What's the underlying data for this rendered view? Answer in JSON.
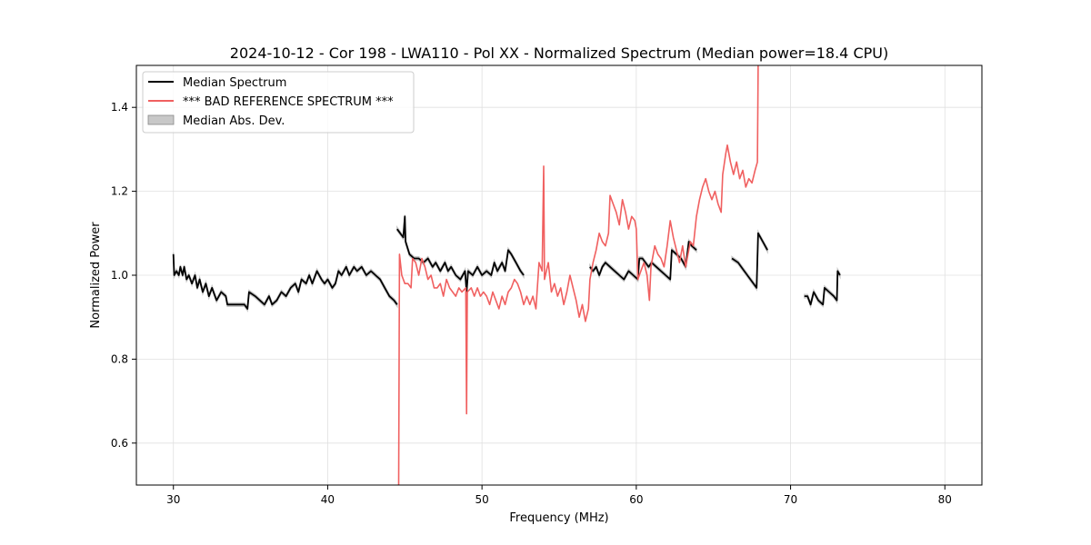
{
  "chart_data": {
    "type": "line",
    "title": "2024-10-12 - Cor 198 - LWA110 - Pol XX - Normalized Spectrum (Median power=18.4 CPU)",
    "xlabel": "Frequency (MHz)",
    "ylabel": "Normalized Power",
    "xlim": [
      27.6,
      82.4
    ],
    "ylim": [
      0.5,
      1.5
    ],
    "xticks": [
      30,
      40,
      50,
      60,
      70,
      80
    ],
    "yticks": [
      0.6,
      0.8,
      1.0,
      1.2,
      1.4
    ],
    "xtick_labels": [
      "30",
      "40",
      "50",
      "60",
      "70",
      "80"
    ],
    "ytick_labels": [
      "0.6",
      "0.8",
      "1.0",
      "1.2",
      "1.4"
    ],
    "grid": true,
    "legend_position": "top-left",
    "legend": [
      {
        "label": "Median Spectrum",
        "kind": "line",
        "color": "#000000"
      },
      {
        "label": "*** BAD REFERENCE SPECTRUM ***",
        "kind": "line",
        "color": "#f06060"
      },
      {
        "label": "Median Abs. Dev.",
        "kind": "patch",
        "color": "#c8c8c8"
      }
    ],
    "series": [
      {
        "name": "Median Spectrum",
        "color": "#000000",
        "segments": [
          [
            [
              30.0,
              1.05
            ],
            [
              30.05,
              1.0
            ],
            [
              30.2,
              1.01
            ],
            [
              30.35,
              1.0
            ],
            [
              30.45,
              1.02
            ],
            [
              30.6,
              1.0
            ],
            [
              30.7,
              1.02
            ],
            [
              30.85,
              0.99
            ],
            [
              31.0,
              1.0
            ],
            [
              31.2,
              0.98
            ],
            [
              31.4,
              1.0
            ],
            [
              31.55,
              0.97
            ],
            [
              31.7,
              0.99
            ],
            [
              31.9,
              0.96
            ],
            [
              32.1,
              0.98
            ],
            [
              32.3,
              0.95
            ],
            [
              32.5,
              0.97
            ],
            [
              32.8,
              0.94
            ],
            [
              33.1,
              0.96
            ],
            [
              33.4,
              0.95
            ],
            [
              33.5,
              0.93
            ],
            [
              33.8,
              0.93
            ],
            [
              34.2,
              0.93
            ],
            [
              34.6,
              0.93
            ],
            [
              34.8,
              0.92
            ],
            [
              34.9,
              0.96
            ],
            [
              35.3,
              0.95
            ],
            [
              35.6,
              0.94
            ],
            [
              35.9,
              0.93
            ],
            [
              36.2,
              0.95
            ],
            [
              36.4,
              0.93
            ],
            [
              36.7,
              0.94
            ],
            [
              37.0,
              0.96
            ],
            [
              37.3,
              0.95
            ],
            [
              37.6,
              0.97
            ],
            [
              37.9,
              0.98
            ],
            [
              38.1,
              0.96
            ],
            [
              38.3,
              0.99
            ],
            [
              38.6,
              0.98
            ],
            [
              38.8,
              1.0
            ],
            [
              39.0,
              0.98
            ],
            [
              39.3,
              1.01
            ],
            [
              39.6,
              0.99
            ],
            [
              39.8,
              0.98
            ],
            [
              40.0,
              0.99
            ],
            [
              40.3,
              0.97
            ],
            [
              40.5,
              0.98
            ],
            [
              40.7,
              1.01
            ],
            [
              40.9,
              1.0
            ],
            [
              41.2,
              1.02
            ],
            [
              41.4,
              1.0
            ],
            [
              41.7,
              1.02
            ],
            [
              41.9,
              1.01
            ],
            [
              42.2,
              1.02
            ],
            [
              42.5,
              1.0
            ],
            [
              42.8,
              1.01
            ],
            [
              43.1,
              1.0
            ],
            [
              43.4,
              0.99
            ],
            [
              43.7,
              0.97
            ],
            [
              44.0,
              0.95
            ],
            [
              44.3,
              0.94
            ],
            [
              44.5,
              0.93
            ]
          ],
          [
            [
              44.5,
              1.11
            ],
            [
              44.7,
              1.1
            ],
            [
              44.9,
              1.09
            ],
            [
              45.0,
              1.14
            ],
            [
              45.05,
              1.08
            ],
            [
              45.3,
              1.05
            ],
            [
              45.6,
              1.04
            ],
            [
              45.9,
              1.04
            ],
            [
              46.2,
              1.03
            ],
            [
              46.5,
              1.04
            ],
            [
              46.8,
              1.02
            ],
            [
              47.0,
              1.03
            ],
            [
              47.3,
              1.01
            ],
            [
              47.6,
              1.03
            ],
            [
              47.8,
              1.01
            ],
            [
              48.0,
              1.02
            ],
            [
              48.3,
              1.0
            ],
            [
              48.6,
              0.99
            ],
            [
              48.9,
              1.01
            ],
            [
              49.0,
              0.96
            ],
            [
              49.1,
              1.01
            ],
            [
              49.4,
              1.0
            ],
            [
              49.7,
              1.02
            ],
            [
              50.0,
              1.0
            ],
            [
              50.3,
              1.01
            ],
            [
              50.6,
              1.0
            ],
            [
              50.8,
              1.03
            ],
            [
              51.0,
              1.01
            ],
            [
              51.3,
              1.03
            ],
            [
              51.5,
              1.01
            ],
            [
              51.7,
              1.06
            ],
            [
              51.9,
              1.05
            ],
            [
              52.2,
              1.03
            ],
            [
              52.5,
              1.01
            ],
            [
              52.7,
              1.0
            ]
          ],
          [
            [
              57.0,
              1.02
            ],
            [
              57.2,
              1.01
            ],
            [
              57.4,
              1.02
            ],
            [
              57.6,
              1.0
            ],
            [
              57.8,
              1.02
            ],
            [
              58.0,
              1.03
            ],
            [
              58.3,
              1.02
            ],
            [
              58.6,
              1.01
            ],
            [
              58.9,
              1.0
            ],
            [
              59.2,
              0.99
            ],
            [
              59.5,
              1.01
            ],
            [
              59.8,
              1.0
            ],
            [
              60.1,
              0.99
            ],
            [
              60.2,
              1.04
            ],
            [
              60.4,
              1.04
            ],
            [
              60.6,
              1.03
            ],
            [
              60.8,
              1.02
            ],
            [
              61.0,
              1.03
            ],
            [
              61.3,
              1.02
            ],
            [
              61.6,
              1.01
            ],
            [
              61.9,
              1.0
            ],
            [
              62.2,
              0.99
            ],
            [
              62.3,
              1.06
            ],
            [
              62.6,
              1.05
            ],
            [
              62.9,
              1.04
            ],
            [
              63.2,
              1.02
            ],
            [
              63.4,
              1.08
            ],
            [
              63.6,
              1.07
            ],
            [
              63.9,
              1.06
            ]
          ],
          [
            [
              66.2,
              1.04
            ],
            [
              66.6,
              1.03
            ],
            [
              67.0,
              1.01
            ],
            [
              67.4,
              0.99
            ],
            [
              67.8,
              0.97
            ],
            [
              67.9,
              1.1
            ],
            [
              68.2,
              1.08
            ],
            [
              68.5,
              1.06
            ]
          ],
          [
            [
              70.9,
              0.95
            ],
            [
              71.1,
              0.95
            ],
            [
              71.3,
              0.93
            ],
            [
              71.5,
              0.96
            ],
            [
              71.8,
              0.94
            ],
            [
              72.1,
              0.93
            ],
            [
              72.2,
              0.97
            ],
            [
              72.5,
              0.96
            ],
            [
              72.8,
              0.95
            ],
            [
              73.0,
              0.94
            ],
            [
              73.05,
              1.01
            ],
            [
              73.2,
              1.0
            ]
          ]
        ]
      },
      {
        "name": "*** BAD REFERENCE SPECTRUM ***",
        "color": "#f06060",
        "segments": [
          [
            [
              44.6,
              0.5
            ],
            [
              44.65,
              1.05
            ],
            [
              44.8,
              1.0
            ],
            [
              45.0,
              0.98
            ],
            [
              45.2,
              0.98
            ],
            [
              45.4,
              0.97
            ],
            [
              45.5,
              1.04
            ],
            [
              45.7,
              1.03
            ],
            [
              45.9,
              1.0
            ],
            [
              46.1,
              1.04
            ],
            [
              46.3,
              1.02
            ],
            [
              46.5,
              0.99
            ],
            [
              46.7,
              1.0
            ],
            [
              46.9,
              0.97
            ],
            [
              47.1,
              0.97
            ],
            [
              47.3,
              0.98
            ],
            [
              47.5,
              0.95
            ],
            [
              47.7,
              0.99
            ],
            [
              47.9,
              0.97
            ],
            [
              48.1,
              0.96
            ],
            [
              48.3,
              0.95
            ],
            [
              48.5,
              0.97
            ],
            [
              48.7,
              0.96
            ],
            [
              48.95,
              0.97
            ],
            [
              49.0,
              0.67
            ],
            [
              49.05,
              0.96
            ],
            [
              49.3,
              0.97
            ],
            [
              49.5,
              0.95
            ],
            [
              49.7,
              0.97
            ],
            [
              49.9,
              0.95
            ],
            [
              50.1,
              0.96
            ],
            [
              50.3,
              0.95
            ],
            [
              50.5,
              0.93
            ],
            [
              50.7,
              0.96
            ],
            [
              50.9,
              0.94
            ],
            [
              51.1,
              0.92
            ],
            [
              51.3,
              0.95
            ],
            [
              51.5,
              0.93
            ],
            [
              51.7,
              0.96
            ],
            [
              51.9,
              0.97
            ],
            [
              52.1,
              0.99
            ],
            [
              52.3,
              0.98
            ],
            [
              52.5,
              0.96
            ],
            [
              52.7,
              0.93
            ],
            [
              52.9,
              0.95
            ],
            [
              53.1,
              0.93
            ],
            [
              53.3,
              0.95
            ],
            [
              53.5,
              0.92
            ],
            [
              53.7,
              1.03
            ],
            [
              53.9,
              1.01
            ],
            [
              54.0,
              1.26
            ],
            [
              54.05,
              0.99
            ],
            [
              54.3,
              1.03
            ],
            [
              54.5,
              0.96
            ],
            [
              54.7,
              0.98
            ],
            [
              54.9,
              0.95
            ],
            [
              55.1,
              0.97
            ],
            [
              55.3,
              0.93
            ],
            [
              55.5,
              0.96
            ],
            [
              55.7,
              1.0
            ],
            [
              55.9,
              0.97
            ],
            [
              56.1,
              0.94
            ],
            [
              56.3,
              0.9
            ],
            [
              56.5,
              0.93
            ],
            [
              56.7,
              0.89
            ],
            [
              56.9,
              0.92
            ],
            [
              57.0,
              0.99
            ],
            [
              57.2,
              1.03
            ],
            [
              57.4,
              1.06
            ],
            [
              57.6,
              1.1
            ],
            [
              57.8,
              1.08
            ],
            [
              58.0,
              1.07
            ],
            [
              58.2,
              1.1
            ],
            [
              58.3,
              1.19
            ],
            [
              58.5,
              1.17
            ],
            [
              58.7,
              1.15
            ],
            [
              58.9,
              1.12
            ],
            [
              59.1,
              1.18
            ],
            [
              59.3,
              1.15
            ],
            [
              59.5,
              1.11
            ],
            [
              59.7,
              1.14
            ],
            [
              59.9,
              1.13
            ],
            [
              60.0,
              1.11
            ],
            [
              60.1,
              0.99
            ],
            [
              60.3,
              1.01
            ],
            [
              60.5,
              1.03
            ],
            [
              60.7,
              1.0
            ],
            [
              60.85,
              0.94
            ],
            [
              60.95,
              1.02
            ],
            [
              61.2,
              1.07
            ],
            [
              61.4,
              1.05
            ],
            [
              61.6,
              1.04
            ],
            [
              61.8,
              1.02
            ],
            [
              62.0,
              1.07
            ],
            [
              62.2,
              1.13
            ],
            [
              62.4,
              1.09
            ],
            [
              62.6,
              1.06
            ],
            [
              62.8,
              1.03
            ],
            [
              63.0,
              1.07
            ],
            [
              63.2,
              1.02
            ],
            [
              63.5,
              1.08
            ],
            [
              63.7,
              1.07
            ],
            [
              63.9,
              1.14
            ],
            [
              64.1,
              1.18
            ],
            [
              64.3,
              1.21
            ],
            [
              64.5,
              1.23
            ],
            [
              64.7,
              1.2
            ],
            [
              64.9,
              1.18
            ],
            [
              65.1,
              1.2
            ],
            [
              65.3,
              1.17
            ],
            [
              65.5,
              1.15
            ],
            [
              65.6,
              1.24
            ],
            [
              65.8,
              1.29
            ],
            [
              65.9,
              1.31
            ],
            [
              66.1,
              1.27
            ],
            [
              66.3,
              1.24
            ],
            [
              66.5,
              1.27
            ],
            [
              66.7,
              1.23
            ],
            [
              66.9,
              1.25
            ],
            [
              67.1,
              1.21
            ],
            [
              67.3,
              1.23
            ],
            [
              67.5,
              1.22
            ],
            [
              67.7,
              1.25
            ],
            [
              67.85,
              1.27
            ],
            [
              67.9,
              1.5
            ]
          ]
        ]
      }
    ],
    "band": {
      "name": "Median Abs. Dev.",
      "color": "#c8c8c8",
      "halfwidth": 0.004
    }
  }
}
